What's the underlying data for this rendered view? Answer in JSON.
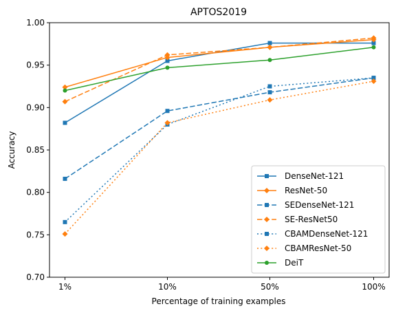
{
  "chart_data": {
    "type": "line",
    "title": "APTOS2019",
    "xlabel": "Percentage of training examples",
    "ylabel": "Accuracy",
    "categories": [
      "1%",
      "10%",
      "50%",
      "100%"
    ],
    "ylim": [
      0.7,
      1.0
    ],
    "yticks": [
      "0.70",
      "0.75",
      "0.80",
      "0.85",
      "0.90",
      "0.95",
      "1.00"
    ],
    "grid": false,
    "legend_position": "lower-right",
    "series": [
      {
        "name": "DenseNet-121",
        "color": "#1f77b4",
        "linestyle": "solid",
        "marker": "square",
        "values": [
          0.882,
          0.955,
          0.976,
          0.976
        ]
      },
      {
        "name": "ResNet-50",
        "color": "#ff7f0e",
        "linestyle": "solid",
        "marker": "diamond",
        "values": [
          0.924,
          0.959,
          0.971,
          0.98
        ]
      },
      {
        "name": "SEDenseNet-121",
        "color": "#1f77b4",
        "linestyle": "dashed",
        "marker": "square",
        "values": [
          0.816,
          0.896,
          0.918,
          0.935
        ]
      },
      {
        "name": "SE-ResNet50",
        "color": "#ff7f0e",
        "linestyle": "dashed",
        "marker": "diamond",
        "values": [
          0.907,
          0.962,
          0.971,
          0.982
        ]
      },
      {
        "name": "CBAMDenseNet-121",
        "color": "#1f77b4",
        "linestyle": "dotted",
        "marker": "square",
        "values": [
          0.765,
          0.88,
          0.925,
          0.935
        ]
      },
      {
        "name": "CBAMResNet-50",
        "color": "#ff7f0e",
        "linestyle": "dotted",
        "marker": "diamond",
        "values": [
          0.751,
          0.882,
          0.909,
          0.931
        ]
      },
      {
        "name": "DeiT",
        "color": "#2ca02c",
        "linestyle": "solid",
        "marker": "circle",
        "values": [
          0.92,
          0.947,
          0.956,
          0.971
        ]
      }
    ]
  }
}
